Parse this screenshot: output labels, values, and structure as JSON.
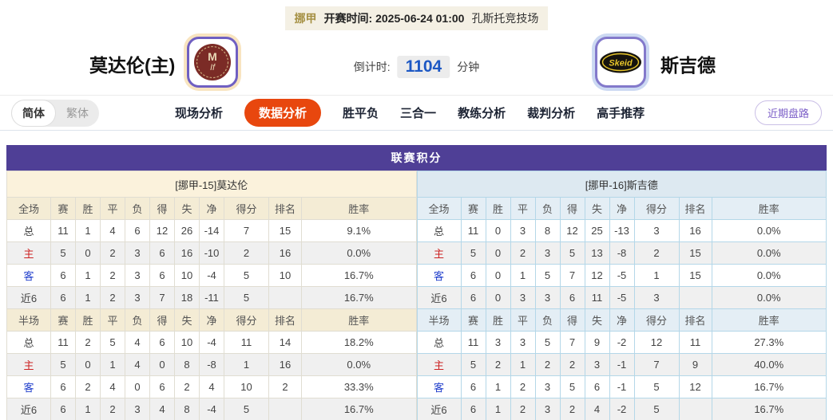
{
  "header": {
    "league_tag": "挪甲",
    "kickoff": "开赛时间: 2025-06-24 01:00",
    "venue": "孔斯托竞技场",
    "home_team": "莫达伦(主)",
    "away_team": "斯吉德",
    "countdown_label": "倒计时:",
    "countdown_value": "1104",
    "countdown_unit": "分钟",
    "home_logo_monogram_top": "M",
    "home_logo_monogram_bottom": "If",
    "away_logo_text": "Skeid"
  },
  "nav": {
    "lang_simplified": "简体",
    "lang_traditional": "繁体",
    "tabs": [
      {
        "label": "现场分析",
        "active": false
      },
      {
        "label": "数据分析",
        "active": true
      },
      {
        "label": "胜平负",
        "active": false
      },
      {
        "label": "三合一",
        "active": false
      },
      {
        "label": "教练分析",
        "active": false
      },
      {
        "label": "裁判分析",
        "active": false
      },
      {
        "label": "高手推荐",
        "active": false
      }
    ],
    "recent_trend_button": "近期盘路"
  },
  "table": {
    "title": "联赛积分",
    "columns_full": [
      "全场",
      "赛",
      "胜",
      "平",
      "负",
      "得",
      "失",
      "净",
      "得分",
      "排名",
      "胜率"
    ],
    "columns_half": [
      "半场",
      "赛",
      "胜",
      "平",
      "负",
      "得",
      "失",
      "净",
      "得分",
      "排名",
      "胜率"
    ],
    "home": {
      "header": "[挪甲-15]莫达伦",
      "full": [
        {
          "label": "总",
          "cells": [
            "11",
            "1",
            "4",
            "6",
            "12",
            "26",
            "-14",
            "7",
            "15",
            "9.1%"
          ]
        },
        {
          "label": "主",
          "cells": [
            "5",
            "0",
            "2",
            "3",
            "6",
            "16",
            "-10",
            "2",
            "16",
            "0.0%"
          ]
        },
        {
          "label": "客",
          "cells": [
            "6",
            "1",
            "2",
            "3",
            "6",
            "10",
            "-4",
            "5",
            "10",
            "16.7%"
          ]
        },
        {
          "label": "近6",
          "cells": [
            "6",
            "1",
            "2",
            "3",
            "7",
            "18",
            "-11",
            "5",
            "",
            "16.7%"
          ]
        }
      ],
      "half": [
        {
          "label": "总",
          "cells": [
            "11",
            "2",
            "5",
            "4",
            "6",
            "10",
            "-4",
            "11",
            "14",
            "18.2%"
          ]
        },
        {
          "label": "主",
          "cells": [
            "5",
            "0",
            "1",
            "4",
            "0",
            "8",
            "-8",
            "1",
            "16",
            "0.0%"
          ]
        },
        {
          "label": "客",
          "cells": [
            "6",
            "2",
            "4",
            "0",
            "6",
            "2",
            "4",
            "10",
            "2",
            "33.3%"
          ]
        },
        {
          "label": "近6",
          "cells": [
            "6",
            "1",
            "2",
            "3",
            "4",
            "8",
            "-4",
            "5",
            "",
            "16.7%"
          ]
        }
      ]
    },
    "away": {
      "header": "[挪甲-16]斯吉德",
      "full": [
        {
          "label": "总",
          "cells": [
            "11",
            "0",
            "3",
            "8",
            "12",
            "25",
            "-13",
            "3",
            "16",
            "0.0%"
          ]
        },
        {
          "label": "主",
          "cells": [
            "5",
            "0",
            "2",
            "3",
            "5",
            "13",
            "-8",
            "2",
            "15",
            "0.0%"
          ]
        },
        {
          "label": "客",
          "cells": [
            "6",
            "0",
            "1",
            "5",
            "7",
            "12",
            "-5",
            "1",
            "15",
            "0.0%"
          ]
        },
        {
          "label": "近6",
          "cells": [
            "6",
            "0",
            "3",
            "3",
            "6",
            "11",
            "-5",
            "3",
            "",
            "0.0%"
          ]
        }
      ],
      "half": [
        {
          "label": "总",
          "cells": [
            "11",
            "3",
            "3",
            "5",
            "7",
            "9",
            "-2",
            "12",
            "11",
            "27.3%"
          ]
        },
        {
          "label": "主",
          "cells": [
            "5",
            "2",
            "1",
            "2",
            "2",
            "3",
            "-1",
            "7",
            "9",
            "40.0%"
          ]
        },
        {
          "label": "客",
          "cells": [
            "6",
            "1",
            "2",
            "3",
            "5",
            "6",
            "-1",
            "5",
            "12",
            "16.7%"
          ]
        },
        {
          "label": "近6",
          "cells": [
            "6",
            "1",
            "2",
            "3",
            "2",
            "4",
            "-2",
            "5",
            "",
            "16.7%"
          ]
        }
      ]
    }
  },
  "colors": {
    "title_bar_purple": "#4f3f96",
    "home_header_cream": "#fbf2dc",
    "away_header_blue": "#dde9f1",
    "active_tab_orange": "#e8470e",
    "countdown_blue": "#1d58c4",
    "home_row_label_red": "#cc2222",
    "away_row_label_blue": "#2240cc"
  }
}
